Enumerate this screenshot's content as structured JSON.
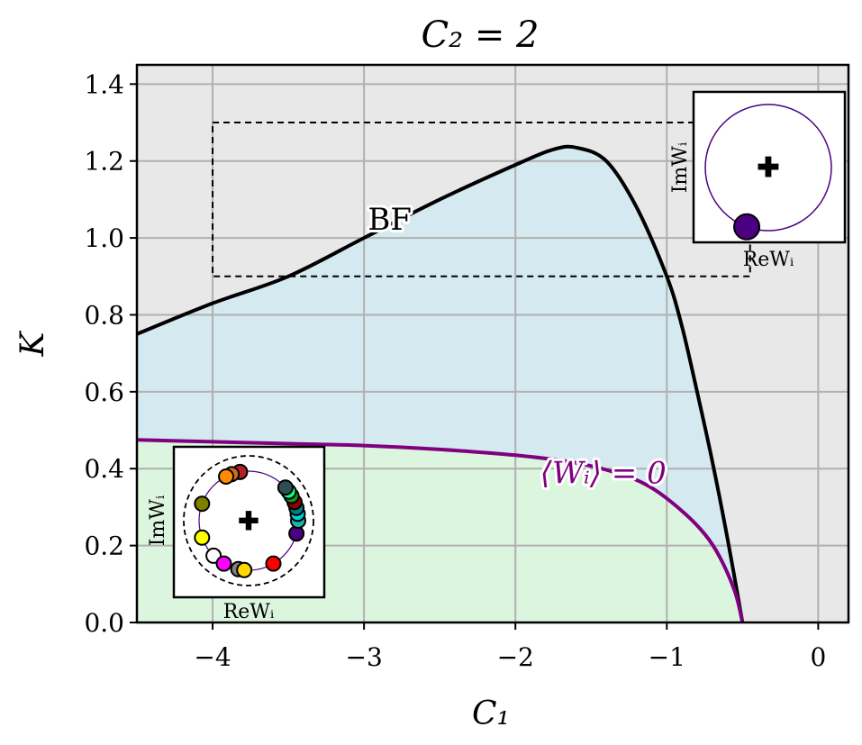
{
  "chart_data": {
    "type": "line",
    "title": "C₂ = 2",
    "xlabel": "C₁",
    "ylabel": "K",
    "xlim": [
      -4.5,
      0.2
    ],
    "ylim": [
      0.0,
      1.45
    ],
    "xticks": [
      -4,
      -3,
      -2,
      -1,
      0
    ],
    "xtick_labels": [
      "−4",
      "−3",
      "−2",
      "−1",
      "0"
    ],
    "yticks": [
      0.0,
      0.2,
      0.4,
      0.6,
      0.8,
      1.0,
      1.2,
      1.4
    ],
    "ytick_labels": [
      "0.0",
      "0.2",
      "0.4",
      "0.6",
      "0.8",
      "1.0",
      "1.2",
      "1.4"
    ],
    "grid": true,
    "background_color": "#e8e8e8",
    "series": [
      {
        "name": "",
        "color": "#000000",
        "x": [
          -4.5,
          -4.0,
          -3.5,
          -3.0,
          -2.5,
          -2.0,
          -1.75,
          -1.6,
          -1.4,
          -1.2,
          -1.0,
          -0.9,
          -0.8,
          -0.7,
          -0.6,
          -0.5
        ],
        "y": [
          0.75,
          0.83,
          0.9,
          1.0,
          1.1,
          1.19,
          1.23,
          1.235,
          1.2,
          1.08,
          0.9,
          0.77,
          0.6,
          0.42,
          0.22,
          0.0
        ]
      },
      {
        "name": "",
        "color": "#800080",
        "x": [
          -4.5,
          -4.0,
          -3.5,
          -3.0,
          -2.5,
          -2.0,
          -1.6,
          -1.3,
          -1.1,
          -0.9,
          -0.75,
          -0.65,
          -0.55,
          -0.5
        ],
        "y": [
          0.475,
          0.47,
          0.465,
          0.46,
          0.45,
          0.435,
          0.415,
          0.385,
          0.35,
          0.29,
          0.23,
          0.17,
          0.08,
          0.0
        ]
      }
    ],
    "regions": [
      {
        "label": "BF",
        "color": "#d4e9f0",
        "label_x": -2.83,
        "label_y": 1.05
      },
      {
        "label": "⟨Wᵢ⟩ = 0",
        "color": "#dcf5de",
        "label_x": -1.42,
        "label_y": 0.39,
        "label_color": "#800080"
      }
    ],
    "dashed_rectangle": {
      "x": [
        -4.0,
        -0.45
      ],
      "y": [
        0.9,
        1.3
      ]
    },
    "insets": [
      {
        "name": "top-right",
        "xlabel": "ReWᵢ",
        "ylabel": "ImWᵢ",
        "circle_color": "#4b0082",
        "points": [
          {
            "angle_deg": 250,
            "color": "#4b0082"
          }
        ]
      },
      {
        "name": "bottom-left",
        "xlabel": "ReWᵢ",
        "ylabel": "ImWᵢ",
        "circle_color": "#4b0082",
        "outer_dashed_circle": true,
        "points": [
          {
            "angle_deg": 100,
            "color": "#b22222"
          },
          {
            "angle_deg": 110,
            "color": "#d2691e"
          },
          {
            "angle_deg": 117,
            "color": "#ff8c00"
          },
          {
            "angle_deg": 160,
            "color": "#808000"
          },
          {
            "angle_deg": 200,
            "color": "#ffff00"
          },
          {
            "angle_deg": 225,
            "color": "#ffffff"
          },
          {
            "angle_deg": 240,
            "color": "#ff00ff"
          },
          {
            "angle_deg": 258,
            "color": "#808080"
          },
          {
            "angle_deg": 265,
            "color": "#ffd700"
          },
          {
            "angle_deg": 300,
            "color": "#ff0000"
          },
          {
            "angle_deg": 345,
            "color": "#4b0082"
          },
          {
            "angle_deg": 0,
            "color": "#20b2aa"
          },
          {
            "angle_deg": 8,
            "color": "#00ced1"
          },
          {
            "angle_deg": 15,
            "color": "#008080"
          },
          {
            "angle_deg": 22,
            "color": "#8b0000"
          },
          {
            "angle_deg": 30,
            "color": "#228b22"
          },
          {
            "angle_deg": 36,
            "color": "#00ff7f"
          },
          {
            "angle_deg": 42,
            "color": "#2f4f4f"
          }
        ]
      }
    ]
  }
}
